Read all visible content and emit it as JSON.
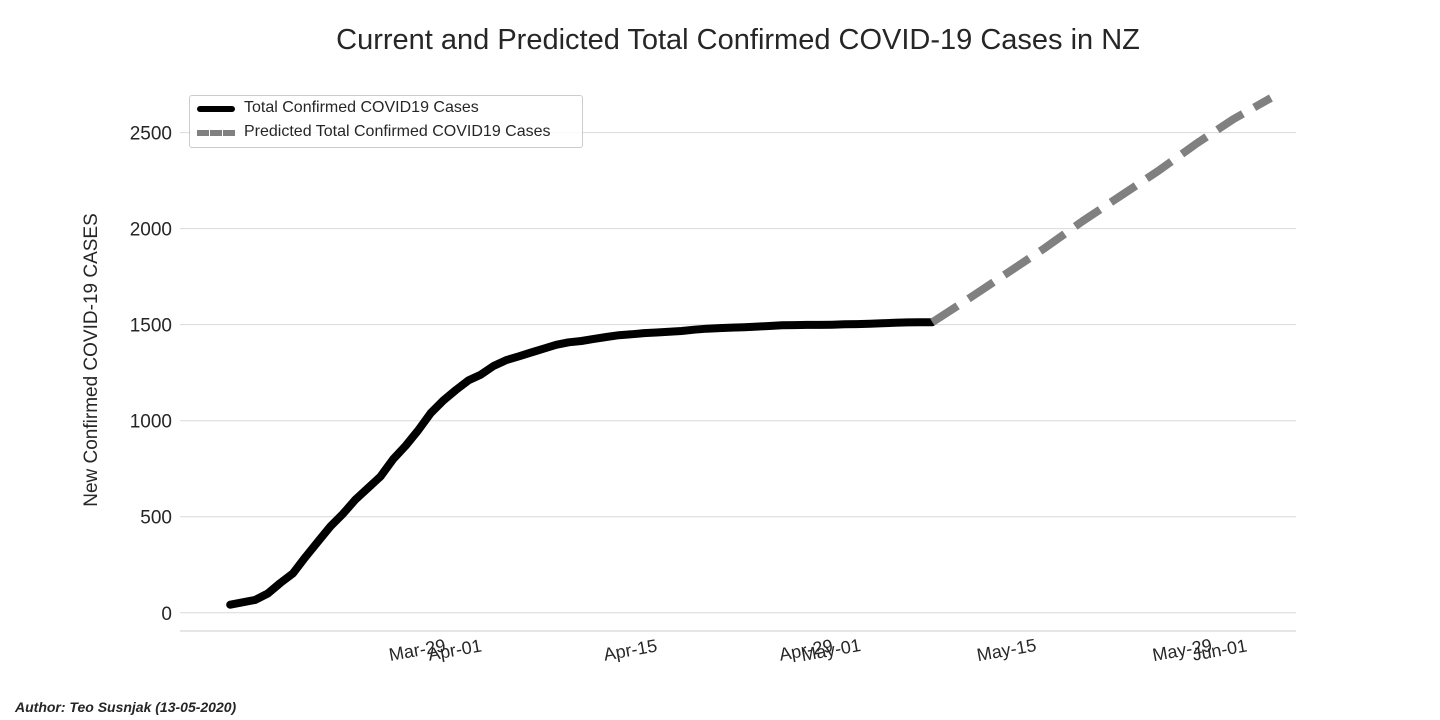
{
  "chart_data": {
    "type": "line",
    "title": "Current and Predicted Total Confirmed COVID-19 Cases in NZ",
    "xlabel": "",
    "ylabel": "New Confirmed COVID-19 CASES",
    "ylim": [
      -95,
      2800
    ],
    "xlim_days": [
      -9,
      80
    ],
    "x_origin": "2020-03-19",
    "grid": "horizontal",
    "legend_position": "top-left",
    "yticks": [
      0,
      500,
      1000,
      1500,
      2000,
      2500
    ],
    "xticks": [
      {
        "day": 10,
        "label": "Mar-29"
      },
      {
        "day": 13,
        "label": "Apr-01"
      },
      {
        "day": 27,
        "label": "Apr-15"
      },
      {
        "day": 41,
        "label": "Apr-29"
      },
      {
        "day": 43,
        "label": "May-01"
      },
      {
        "day": 57,
        "label": "May-15"
      },
      {
        "day": 71,
        "label": "May-29"
      },
      {
        "day": 74,
        "label": "Jun-01"
      }
    ],
    "series": [
      {
        "name": "Total Confirmed COVID19 Cases",
        "color": "#000000",
        "style": "solid",
        "points": [
          [
            -5,
            42
          ],
          [
            -3,
            67
          ],
          [
            -2,
            100
          ],
          [
            -1,
            155
          ],
          [
            0,
            205
          ],
          [
            1,
            290
          ],
          [
            2,
            370
          ],
          [
            3,
            450
          ],
          [
            4,
            515
          ],
          [
            5,
            590
          ],
          [
            6,
            650
          ],
          [
            7,
            710
          ],
          [
            8,
            800
          ],
          [
            9,
            870
          ],
          [
            10,
            950
          ],
          [
            11,
            1040
          ],
          [
            12,
            1105
          ],
          [
            13,
            1160
          ],
          [
            14,
            1210
          ],
          [
            15,
            1240
          ],
          [
            16,
            1285
          ],
          [
            17,
            1315
          ],
          [
            18,
            1335
          ],
          [
            19,
            1355
          ],
          [
            20,
            1375
          ],
          [
            21,
            1395
          ],
          [
            22,
            1408
          ],
          [
            23,
            1415
          ],
          [
            24,
            1426
          ],
          [
            25,
            1436
          ],
          [
            26,
            1445
          ],
          [
            27,
            1450
          ],
          [
            28,
            1456
          ],
          [
            29,
            1459
          ],
          [
            30,
            1463
          ],
          [
            31,
            1467
          ],
          [
            32,
            1474
          ],
          [
            33,
            1479
          ],
          [
            34,
            1482
          ],
          [
            35,
            1485
          ],
          [
            36,
            1487
          ],
          [
            37,
            1490
          ],
          [
            38,
            1493
          ],
          [
            39,
            1497
          ],
          [
            40,
            1498
          ],
          [
            41,
            1499
          ],
          [
            42,
            1499
          ],
          [
            43,
            1500
          ],
          [
            44,
            1502
          ],
          [
            45,
            1503
          ],
          [
            46,
            1505
          ],
          [
            47,
            1507
          ],
          [
            48,
            1510
          ],
          [
            49,
            1512
          ],
          [
            50,
            1513
          ],
          [
            51,
            1513
          ]
        ]
      },
      {
        "name": "Predicted Total Confirmed COVID19 Cases",
        "color": "#808080",
        "style": "dashed",
        "points": [
          [
            51,
            1513
          ],
          [
            54,
            1640
          ],
          [
            57,
            1770
          ],
          [
            60,
            1900
          ],
          [
            63,
            2040
          ],
          [
            66,
            2170
          ],
          [
            69,
            2300
          ],
          [
            72,
            2440
          ],
          [
            75,
            2570
          ],
          [
            78,
            2680
          ]
        ]
      }
    ]
  },
  "footer": {
    "author": "Author: Teo Susnjak (13-05-2020)"
  }
}
